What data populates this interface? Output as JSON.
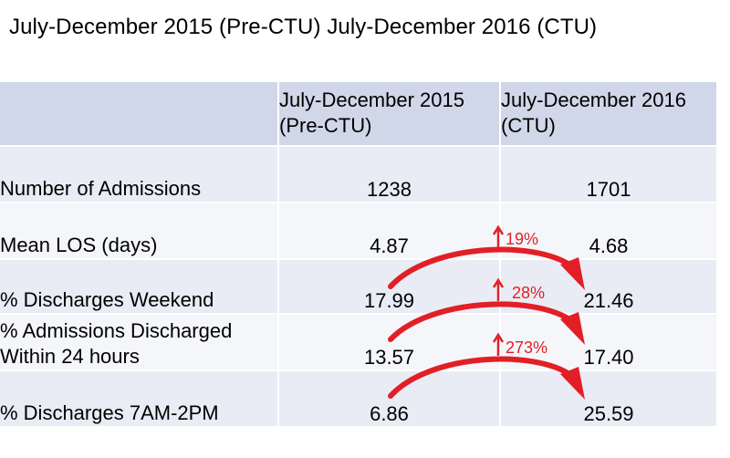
{
  "title": "July-December 2015 (Pre-CTU) July-December 2016 (CTU)",
  "table": {
    "columns": [
      "",
      "July-December 2015 (Pre-CTU)",
      "July-December 2016 (CTU)"
    ],
    "header_lines": {
      "col2": [
        "July-December 2015",
        "(Pre-CTU)"
      ],
      "col3": [
        "July-December 2016",
        "(CTU)"
      ]
    },
    "rows": [
      {
        "label": [
          "Number of Admissions"
        ],
        "pre": "1238",
        "ctu": "1701"
      },
      {
        "label": [
          "Mean LOS (days)"
        ],
        "pre": "4.87",
        "ctu": "4.68"
      },
      {
        "label": [
          "% Discharges Weekend"
        ],
        "pre": "17.99",
        "ctu": "21.46"
      },
      {
        "label": [
          "% Admissions Discharged",
          "Within 24 hours"
        ],
        "pre": "13.57",
        "ctu": "17.40"
      },
      {
        "label": [
          "% Discharges 7AM-2PM"
        ],
        "pre": "6.86",
        "ctu": "25.59"
      }
    ]
  },
  "annotations": [
    {
      "row": "% Discharges Weekend",
      "change": "19%",
      "direction": "up"
    },
    {
      "row": "% Admissions Discharged Within 24 hours",
      "change": "28%",
      "direction": "up"
    },
    {
      "row": "% Discharges 7AM-2PM",
      "change": "273%",
      "direction": "up"
    }
  ],
  "colors": {
    "header_band": "#d0d7e8",
    "row_band_dark": "#e9ecf4",
    "row_band_light": "#f4f6fa",
    "arrow": "#e21f26"
  }
}
